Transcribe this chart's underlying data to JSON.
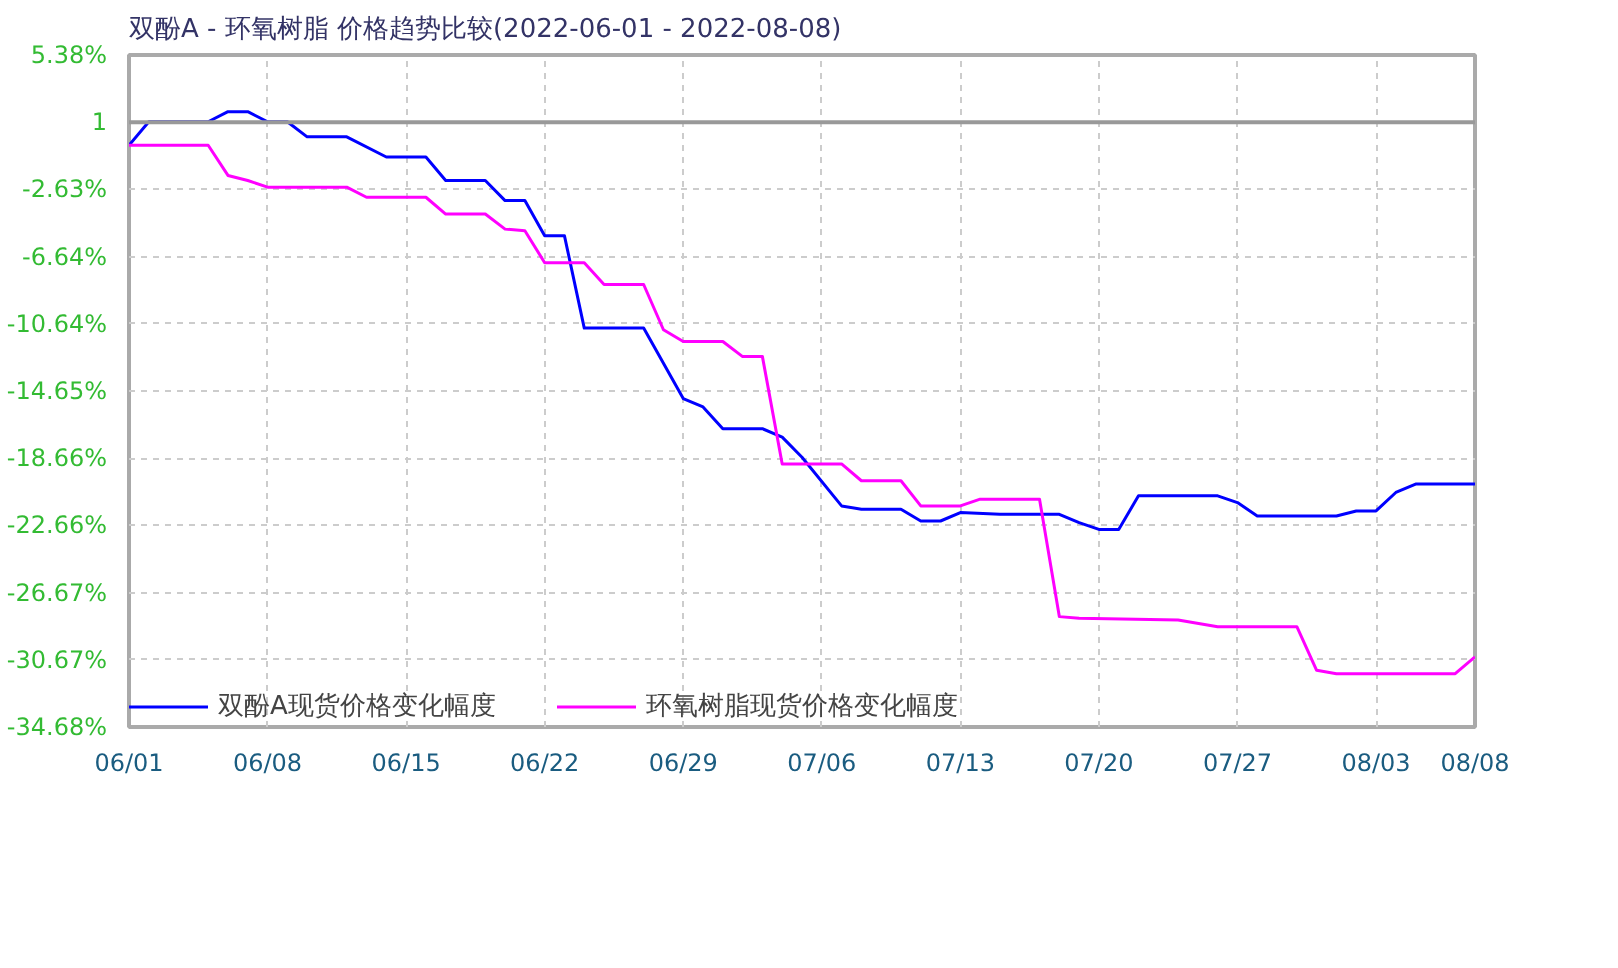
{
  "chart_data": {
    "type": "line",
    "title": "双酚A - 环氧树脂 价格趋势比较(2022-06-01 - 2022-08-08)",
    "xlim": [
      "2022-06-01",
      "2022-08-08"
    ],
    "xticks": [
      {
        "value": "2022-06-01",
        "label": "06/01"
      },
      {
        "value": "2022-06-08",
        "label": "06/08"
      },
      {
        "value": "2022-06-15",
        "label": "06/15"
      },
      {
        "value": "2022-06-22",
        "label": "06/22"
      },
      {
        "value": "2022-06-29",
        "label": "06/29"
      },
      {
        "value": "2022-07-06",
        "label": "07/06"
      },
      {
        "value": "2022-07-13",
        "label": "07/13"
      },
      {
        "value": "2022-07-20",
        "label": "07/20"
      },
      {
        "value": "2022-07-27",
        "label": "07/27"
      },
      {
        "value": "2022-08-03",
        "label": "08/03"
      },
      {
        "value": "2022-08-08",
        "label": "08/08"
      }
    ],
    "ylim": [
      -34.68,
      5.38
    ],
    "yticks": [
      {
        "value": 5.38,
        "label": "5.38%"
      },
      {
        "value": 1.37,
        "label": "1"
      },
      {
        "value": -2.63,
        "label": "-2.63%"
      },
      {
        "value": -6.64,
        "label": "-6.64%"
      },
      {
        "value": -10.64,
        "label": "-10.64%"
      },
      {
        "value": -14.65,
        "label": "-14.65%"
      },
      {
        "value": -18.66,
        "label": "-18.66%"
      },
      {
        "value": -22.66,
        "label": "-22.66%"
      },
      {
        "value": -26.67,
        "label": "-26.67%"
      },
      {
        "value": -30.67,
        "label": "-30.67%"
      },
      {
        "value": -34.68,
        "label": "-34.68%"
      }
    ],
    "ref_lines": [
      {
        "axis": "y",
        "value": 1.37,
        "color": "#999999",
        "line_style": "solid"
      }
    ],
    "grid": true,
    "legend": "bottom left",
    "line_style": "solid",
    "marker": "none",
    "series": [
      {
        "name": "双酚A现货价格变化幅度",
        "color": "#0000ff",
        "x": [
          "2022-06-01",
          "2022-06-02",
          "2022-06-05",
          "2022-06-06",
          "2022-06-07",
          "2022-06-08",
          "2022-06-09",
          "2022-06-10",
          "2022-06-12",
          "2022-06-14",
          "2022-06-16",
          "2022-06-17",
          "2022-06-19",
          "2022-06-20",
          "2022-06-21",
          "2022-06-22",
          "2022-06-23",
          "2022-06-24",
          "2022-06-27",
          "2022-06-29",
          "2022-06-30",
          "2022-07-01",
          "2022-07-03",
          "2022-07-04",
          "2022-07-05",
          "2022-07-07",
          "2022-07-08",
          "2022-07-10",
          "2022-07-11",
          "2022-07-12",
          "2022-07-13",
          "2022-07-15",
          "2022-07-18",
          "2022-07-19",
          "2022-07-20",
          "2022-07-21",
          "2022-07-22",
          "2022-07-26",
          "2022-07-27",
          "2022-07-28",
          "2022-08-01",
          "2022-08-02",
          "2022-08-03",
          "2022-08-04",
          "2022-08-05",
          "2022-08-08"
        ],
        "values": [
          0,
          1.4,
          1.4,
          2.0,
          2.0,
          1.4,
          1.4,
          0.5,
          0.5,
          -0.7,
          -0.7,
          -2.1,
          -2.1,
          -3.3,
          -3.3,
          -5.4,
          -5.4,
          -10.9,
          -10.9,
          -15.1,
          -15.6,
          -16.9,
          -16.9,
          -17.4,
          -18.6,
          -21.5,
          -21.7,
          -21.7,
          -22.4,
          -22.4,
          -21.9,
          -22.0,
          -22.0,
          -22.5,
          -22.9,
          -22.9,
          -20.9,
          -20.9,
          -21.3,
          -22.1,
          -22.1,
          -21.8,
          -21.8,
          -20.7,
          -20.2,
          -20.2
        ]
      },
      {
        "name": "环氧树脂现货价格变化幅度",
        "color": "#ff00ff",
        "x": [
          "2022-06-01",
          "2022-06-05",
          "2022-06-06",
          "2022-06-07",
          "2022-06-08",
          "2022-06-12",
          "2022-06-13",
          "2022-06-16",
          "2022-06-17",
          "2022-06-19",
          "2022-06-20",
          "2022-06-21",
          "2022-06-22",
          "2022-06-24",
          "2022-06-25",
          "2022-06-27",
          "2022-06-28",
          "2022-06-29",
          "2022-07-01",
          "2022-07-02",
          "2022-07-03",
          "2022-07-04",
          "2022-07-07",
          "2022-07-08",
          "2022-07-10",
          "2022-07-11",
          "2022-07-13",
          "2022-07-14",
          "2022-07-17",
          "2022-07-18",
          "2022-07-19",
          "2022-07-24",
          "2022-07-26",
          "2022-07-30",
          "2022-07-31",
          "2022-08-01",
          "2022-08-07",
          "2022-08-08"
        ],
        "values": [
          0,
          0,
          -1.8,
          -2.1,
          -2.5,
          -2.5,
          -3.1,
          -3.1,
          -4.1,
          -4.1,
          -5.0,
          -5.1,
          -7.0,
          -7.0,
          -8.3,
          -8.3,
          -11.0,
          -11.7,
          -11.7,
          -12.6,
          -12.6,
          -19.0,
          -19.0,
          -20.0,
          -20.0,
          -21.5,
          -21.5,
          -21.1,
          -21.1,
          -28.1,
          -28.2,
          -28.3,
          -28.7,
          -28.7,
          -31.3,
          -31.5,
          -31.5,
          -30.5
        ]
      }
    ]
  }
}
